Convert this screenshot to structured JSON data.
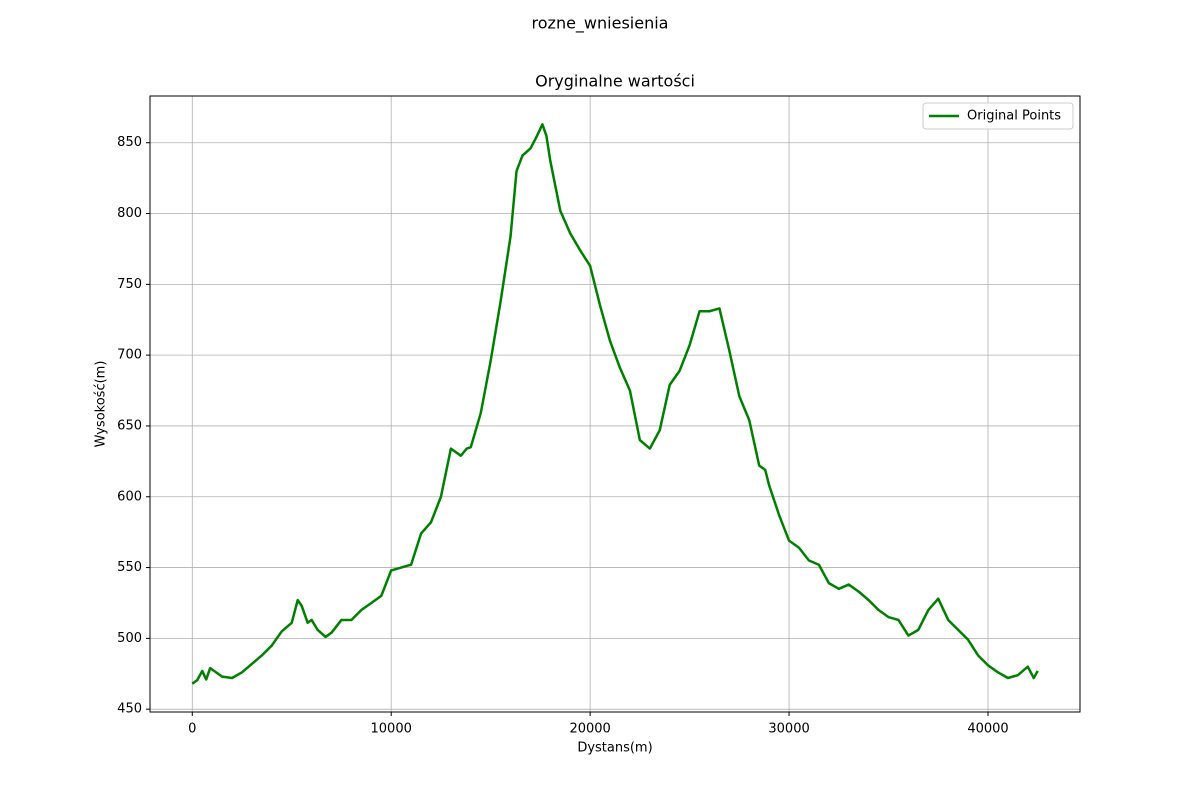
{
  "chart_data": {
    "type": "line",
    "suptitle": "rozne_wniesienia",
    "title": "Oryginalne wartości",
    "xlabel": "Dystans(m)",
    "ylabel": "Wysokość(m)",
    "x": [
      0,
      250,
      500,
      700,
      900,
      1200,
      1500,
      2000,
      2500,
      3000,
      3500,
      4000,
      4500,
      5000,
      5300,
      5500,
      5800,
      6000,
      6300,
      6700,
      7000,
      7500,
      8000,
      8500,
      9000,
      9500,
      10000,
      10500,
      11000,
      11500,
      12000,
      12500,
      13000,
      13500,
      13800,
      14000,
      14500,
      15000,
      15500,
      16000,
      16300,
      16600,
      17000,
      17300,
      17600,
      17800,
      18000,
      18500,
      19000,
      19500,
      20000,
      20500,
      21000,
      21500,
      22000,
      22500,
      23000,
      23500,
      24000,
      24500,
      25000,
      25500,
      26000,
      26500,
      27000,
      27500,
      28000,
      28500,
      28800,
      29000,
      29500,
      30000,
      30500,
      31000,
      31500,
      32000,
      32500,
      33000,
      33500,
      34000,
      34500,
      35000,
      35500,
      36000,
      36500,
      37000,
      37500,
      38000,
      38500,
      39000,
      39500,
      40000,
      40500,
      41000,
      41500,
      42000,
      42300,
      42500
    ],
    "series": [
      {
        "name": "Original Points",
        "color": "#008000",
        "values": [
          468,
          470.5,
          477,
          471,
          479,
          476,
          473,
          472,
          476,
          482,
          488,
          495,
          505,
          511,
          527,
          523,
          511,
          513,
          506,
          501,
          504,
          513,
          513,
          520,
          525,
          530,
          548,
          550,
          552,
          574,
          582,
          600,
          634,
          629,
          634,
          635,
          659,
          696,
          738,
          784,
          830,
          841,
          846,
          854,
          863,
          855,
          837,
          802,
          786,
          774,
          763,
          735,
          710,
          691,
          675,
          640,
          634,
          647,
          679,
          689,
          707,
          731,
          731,
          733,
          703,
          671,
          654,
          622,
          619,
          608,
          587,
          569,
          564,
          555,
          552,
          539,
          535,
          538,
          533,
          527,
          520,
          515,
          513,
          502,
          506,
          520,
          528,
          513,
          506,
          499,
          488,
          481,
          476,
          472,
          474,
          480,
          472,
          477
        ]
      }
    ],
    "xlim": [
      -2125,
      44625
    ],
    "ylim": [
      448,
      883
    ],
    "xticks": [
      0,
      10000,
      20000,
      30000,
      40000
    ],
    "yticks": [
      450,
      500,
      550,
      600,
      650,
      700,
      750,
      800,
      850
    ],
    "grid": true,
    "legend": "upper right"
  }
}
